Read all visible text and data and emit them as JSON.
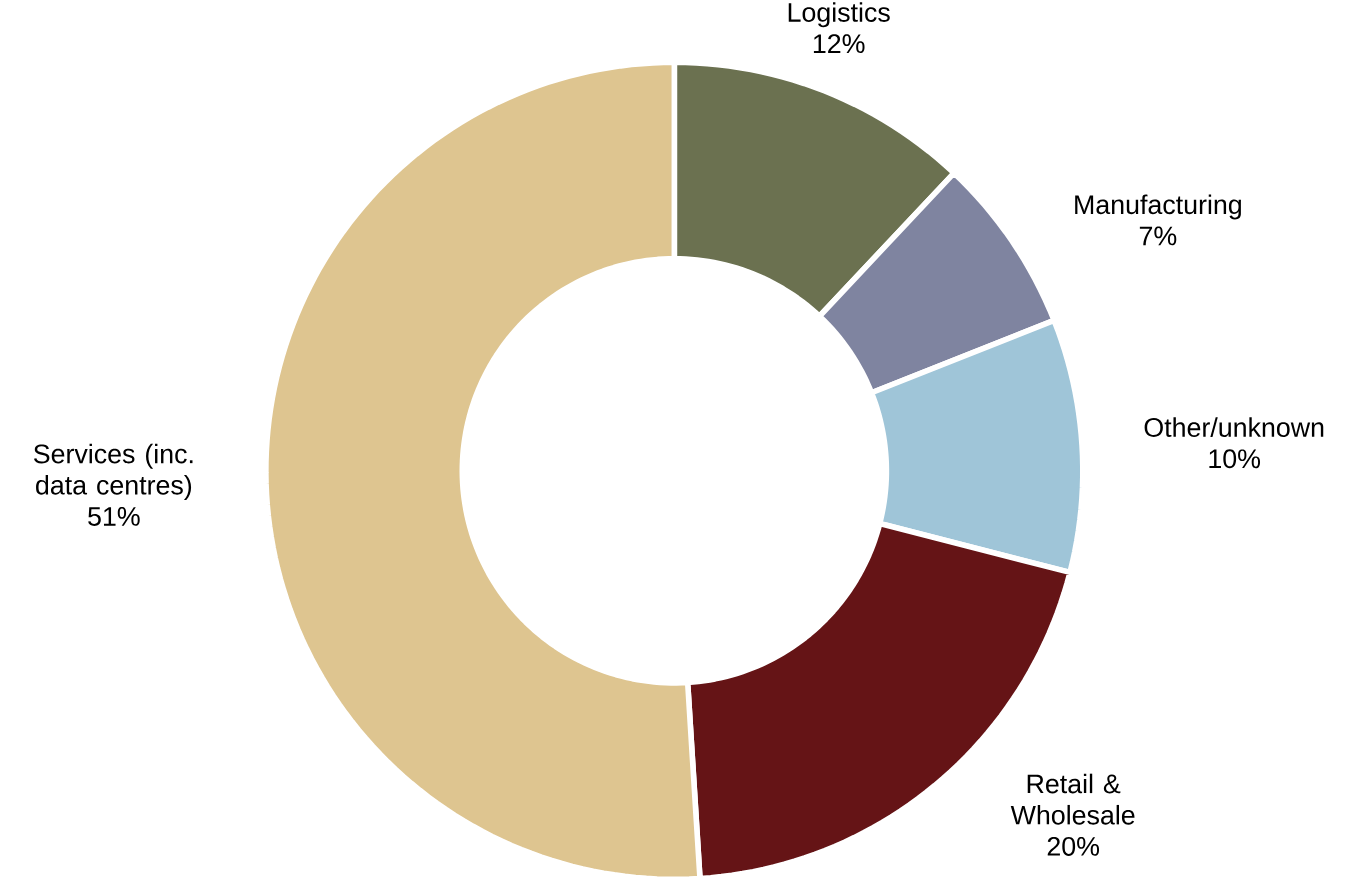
{
  "chart_data": {
    "type": "donut",
    "categories": [
      "Logistics",
      "Manufacturing",
      "Other/unknown",
      "Retail & Wholesale",
      "Services (inc. data centres)"
    ],
    "values": [
      12,
      7,
      10,
      20,
      51
    ],
    "value_labels": [
      "12%",
      "7%",
      "10%",
      "20%",
      "51%"
    ],
    "colors": [
      "#6b7150",
      "#7f84a0",
      "#9fc5d8",
      "#651416",
      "#dec590"
    ],
    "legend": false
  }
}
